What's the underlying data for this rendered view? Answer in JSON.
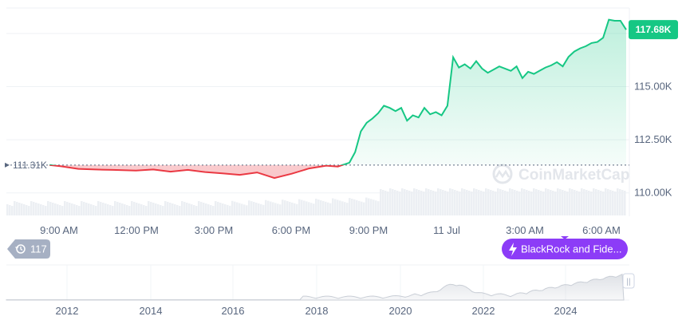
{
  "chart_data": {
    "type": "line",
    "title": "",
    "watermark": "CoinMarketCap",
    "x_tick_labels": [
      "9:00 AM",
      "12:00 PM",
      "3:00 PM",
      "6:00 PM",
      "9:00 PM",
      "11 Jul",
      "3:00 AM",
      "6:00 AM"
    ],
    "y_tick_labels": [
      "115.00K",
      "112.50K",
      "110.00K"
    ],
    "ylim": [
      108900,
      118700
    ],
    "reference_value": 111310,
    "reference_label": "111.31K",
    "current_label": "117.68K",
    "colors": {
      "above": "#16c784",
      "below": "#ea3943",
      "news": "#8c3cf7",
      "ref_badge": "#58667e"
    },
    "series": [
      {
        "x": [
          0,
          2,
          5,
          8,
          11,
          15,
          18,
          21,
          24,
          27,
          30,
          33,
          36,
          39,
          42,
          45,
          48,
          50,
          51,
          52,
          53,
          54,
          55,
          56,
          57,
          58,
          59,
          60,
          61,
          62,
          63,
          64,
          65,
          66,
          67,
          68,
          69,
          70,
          71,
          72,
          73,
          74,
          75,
          76,
          78,
          80,
          81,
          82,
          83,
          84,
          85,
          86,
          87,
          88,
          89,
          90,
          91,
          92,
          93,
          94,
          95,
          96,
          97,
          98,
          99,
          100
        ],
        "y": [
          111310,
          111250,
          111130,
          111100,
          111080,
          111050,
          111100,
          111000,
          111080,
          110980,
          110920,
          110850,
          110960,
          110700,
          110900,
          111150,
          111280,
          111240,
          111330,
          111420,
          111920,
          112900,
          113300,
          113500,
          113750,
          114100,
          114000,
          113850,
          114000,
          113400,
          113650,
          113550,
          114000,
          113700,
          113800,
          113650,
          114100,
          116380,
          115900,
          116050,
          115850,
          116200,
          115850,
          115650,
          115950,
          115740,
          115950,
          115400,
          115700,
          115600,
          115750,
          115900,
          116000,
          116150,
          115950,
          116400,
          116650,
          116800,
          116900,
          117050,
          117100,
          117300,
          118150,
          118100,
          118100,
          117680
        ]
      }
    ],
    "volume_note": "volume histogram (unlabeled)",
    "events_count": "117",
    "news_label": "BlackRock and Fide...",
    "navigator": {
      "x_tick_labels": [
        "2012",
        "2014",
        "2016",
        "2018",
        "2020",
        "2022",
        "2024"
      ],
      "handle": "||"
    }
  }
}
